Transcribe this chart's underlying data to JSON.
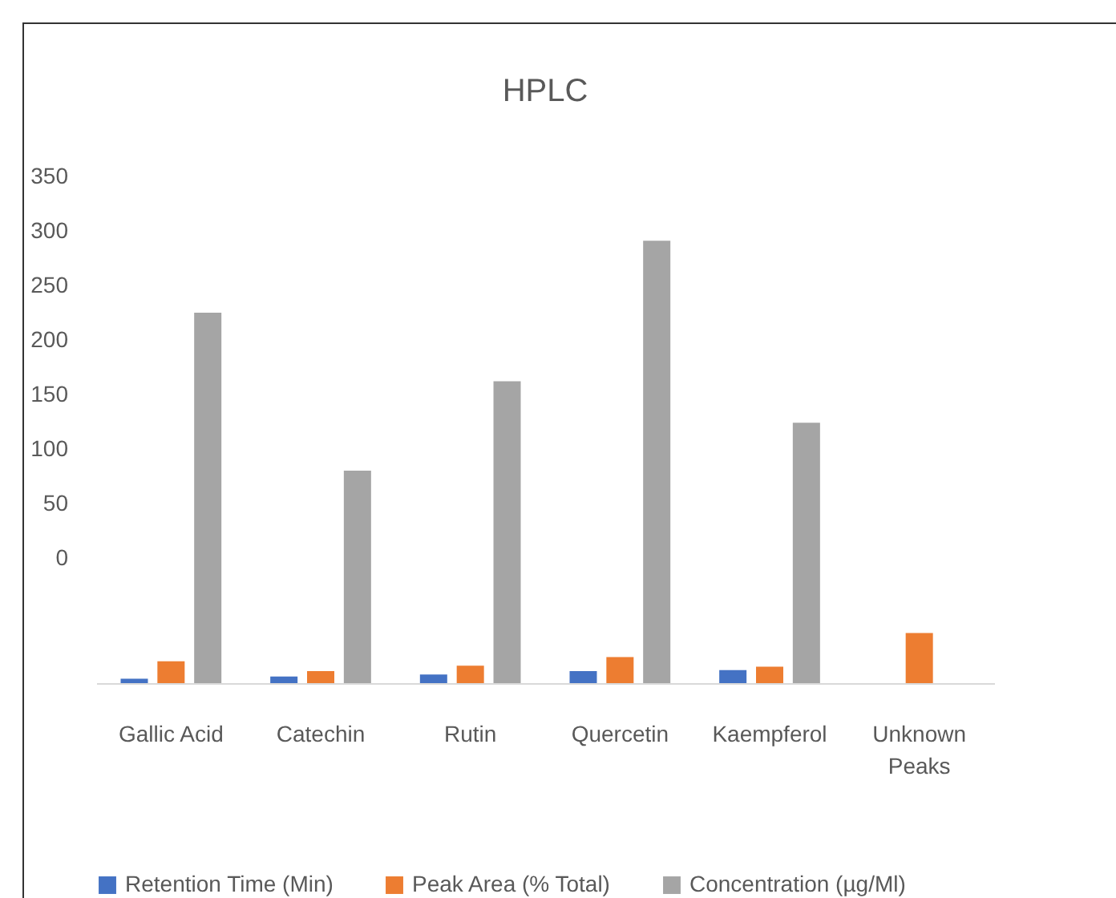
{
  "chart_data": {
    "type": "bar",
    "title": "HPLC",
    "categories": [
      "Gallic Acid",
      "Catechin",
      "Rutin",
      "Quercetin",
      "Kaempferol",
      "Unknown Peaks"
    ],
    "series": [
      {
        "name": "Retention Time (Min)",
        "color": "#4472c4",
        "values": [
          4,
          6,
          8,
          11,
          12,
          null
        ],
        "base": [
          -115,
          -115,
          -115,
          -115,
          -115,
          null
        ]
      },
      {
        "name": "Peak Area (% Total)",
        "color": "#ed7d31",
        "values": [
          20,
          11,
          16,
          24,
          15,
          46
        ],
        "base": [
          -115,
          -115,
          -115,
          -115,
          -115,
          -115
        ]
      },
      {
        "name": "Concentration (µg/Ml)",
        "color": "#a5a5a5",
        "values": [
          340,
          195,
          277,
          406,
          239,
          null
        ],
        "base": [
          -115,
          -115,
          -115,
          -115,
          -115,
          null
        ]
      }
    ],
    "ylim": [
      -115,
      350
    ],
    "yticks": [
      0,
      50,
      100,
      150,
      200,
      250,
      300,
      350
    ],
    "grid": false,
    "legend": "bottom"
  }
}
